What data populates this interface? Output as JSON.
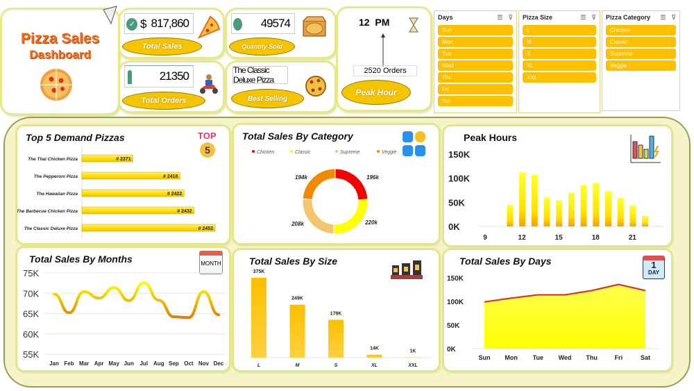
{
  "header": {
    "title_line1": "Pizza Sales",
    "title_line2": "Dashboard"
  },
  "kpis": {
    "total_sales": {
      "currency": "$",
      "value": "817,860",
      "label": "Total Sales"
    },
    "quantity_sold": {
      "value": "49574",
      "label": "Quantity Sold"
    },
    "total_orders": {
      "value": "21350",
      "label": "Total Orders"
    },
    "best_selling": {
      "value": "The Classic Deluxe Pizza",
      "label": "Best Selling"
    },
    "peak_hour": {
      "value": "12  PM",
      "orders": "2520 Orders",
      "label": "Peak Hour"
    }
  },
  "slicers": [
    {
      "title": "Days",
      "items": [
        "Sun",
        "Mon",
        "Tue",
        "Wed",
        "Thu",
        "Fri",
        "Sat"
      ]
    },
    {
      "title": "Pizza Size",
      "items": [
        "L",
        "M",
        "S",
        "XL",
        "XXL"
      ]
    },
    {
      "title": "Pizza Category",
      "items": [
        "Chicken",
        "Classic",
        "Supreme",
        "Veggie"
      ]
    }
  ],
  "badges": {
    "top": "TOP",
    "five": "5",
    "month": "MONTH",
    "day_num": "1",
    "day": "DAY"
  },
  "chart_data": [
    {
      "id": "top5",
      "type": "bar",
      "orientation": "horizontal",
      "title": "Top 5 Demand Pizzas",
      "categories": [
        "The Thai Chicken Pizza",
        "The Pepperoni Pizza",
        "The Hawaiian Pizza",
        "The Barbecue Chicken Pizza",
        "The Classic Deluxe Pizza"
      ],
      "values": [
        2371,
        2418,
        2422,
        2432,
        2453
      ],
      "labels": [
        "# 2371",
        "# 2418",
        "# 2422",
        "# 2432",
        "# 2453"
      ],
      "xlim": [
        2320,
        2460
      ]
    },
    {
      "id": "category",
      "type": "pie",
      "title": "Total Sales By Category",
      "categories": [
        "Chicken",
        "Classic",
        "Supreme",
        "Veggie"
      ],
      "values": [
        196,
        220,
        208,
        194
      ],
      "labels": [
        "196k",
        "220k",
        "208k",
        "194k"
      ],
      "colors": [
        "#f50000",
        "#ffff00",
        "#f5c46e",
        "#f08a00"
      ],
      "legend": "top"
    },
    {
      "id": "peak_hours",
      "type": "bar",
      "title": "Peak Hours",
      "x": [
        9,
        10,
        11,
        12,
        13,
        14,
        15,
        16,
        17,
        18,
        19,
        20,
        21,
        22,
        23
      ],
      "values": [
        0.5,
        0.5,
        45,
        112,
        107,
        60,
        54,
        70,
        86,
        90,
        73,
        59,
        43,
        22,
        1
      ],
      "xticks": [
        "9",
        "12",
        "15",
        "18",
        "21"
      ],
      "yticks": [
        "0K",
        "50K",
        "100K",
        "150K"
      ],
      "ylim": [
        0,
        150
      ]
    },
    {
      "id": "months",
      "type": "line",
      "title": "Total Sales By Months",
      "categories": [
        "Jan",
        "Feb",
        "Mar",
        "Apr",
        "May",
        "Jun",
        "Jul",
        "Aug",
        "Sep",
        "Oct",
        "Nov",
        "Dec"
      ],
      "values": [
        69.8,
        65.2,
        70.4,
        68.8,
        71.4,
        68.2,
        72.6,
        68.3,
        64.2,
        64.0,
        70.4,
        64.7
      ],
      "yticks": [
        "55K",
        "60K",
        "65K",
        "70K",
        "75K"
      ],
      "ylim": [
        55,
        75
      ]
    },
    {
      "id": "size",
      "type": "bar",
      "title": "Total Sales By Size",
      "categories": [
        "L",
        "M",
        "S",
        "XL",
        "XXL"
      ],
      "values": [
        375,
        249,
        178,
        14,
        1
      ],
      "labels": [
        "375K",
        "249K",
        "178K",
        "14K",
        "1K"
      ],
      "ylim": [
        0,
        375
      ]
    },
    {
      "id": "days",
      "type": "area",
      "title": "Total Sales By Days",
      "categories": [
        "Sun",
        "Mon",
        "Tue",
        "Wed",
        "Thu",
        "Fri",
        "Sat"
      ],
      "values": [
        99,
        107,
        114,
        114,
        123,
        136,
        123
      ],
      "yticks": [
        "0K",
        "50K",
        "100K",
        "150K"
      ],
      "ylim": [
        0,
        150
      ]
    }
  ]
}
